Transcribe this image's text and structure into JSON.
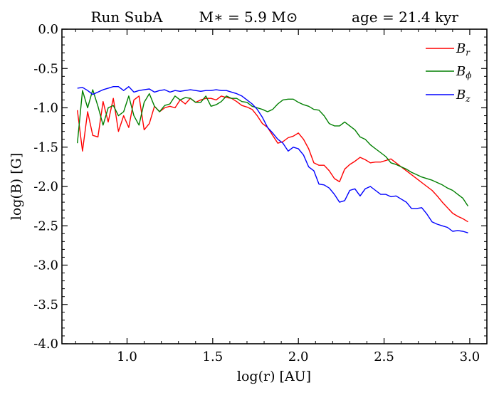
{
  "chart_data": {
    "type": "line",
    "title": {
      "run": "Run SubA",
      "mass": "M∗ = 5.9 M⊙",
      "age": "age = 21.4 kyr"
    },
    "xlabel": "log(r) [AU]",
    "ylabel": "log(B) [G]",
    "xlim": [
      0.62,
      3.1
    ],
    "ylim": [
      -4.0,
      0.0
    ],
    "xticks": [
      1.0,
      1.5,
      2.0,
      2.5,
      3.0
    ],
    "xtick_labels": [
      "1.0",
      "1.5",
      "2.0",
      "2.5",
      "3.0"
    ],
    "yticks": [
      0.0,
      -0.5,
      -1.0,
      -1.5,
      -2.0,
      -2.5,
      -3.0,
      -3.5,
      -4.0
    ],
    "ytick_labels": [
      "0.0",
      "-0.5",
      "-1.0",
      "-1.5",
      "-2.0",
      "-2.5",
      "-3.0",
      "-3.5",
      "-4.0"
    ],
    "legend_position": "top-right",
    "series": [
      {
        "name": "B_r",
        "label_main": "B",
        "label_sub": "r",
        "color": "#ff0000",
        "x": [
          0.71,
          0.74,
          0.77,
          0.8,
          0.83,
          0.86,
          0.89,
          0.92,
          0.95,
          0.98,
          1.01,
          1.04,
          1.07,
          1.1,
          1.13,
          1.16,
          1.19,
          1.22,
          1.25,
          1.28,
          1.31,
          1.34,
          1.37,
          1.4,
          1.43,
          1.46,
          1.49,
          1.52,
          1.55,
          1.58,
          1.61,
          1.64,
          1.67,
          1.7,
          1.73,
          1.76,
          1.79,
          1.82,
          1.85,
          1.88,
          1.91,
          1.94,
          1.97,
          2.0,
          2.03,
          2.06,
          2.09,
          2.12,
          2.15,
          2.18,
          2.21,
          2.24,
          2.27,
          2.3,
          2.33,
          2.36,
          2.39,
          2.42,
          2.45,
          2.48,
          2.51,
          2.54,
          2.57,
          2.6,
          2.63,
          2.66,
          2.69,
          2.72,
          2.75,
          2.78,
          2.81,
          2.84,
          2.87,
          2.9,
          2.93,
          2.96,
          2.99
        ],
        "values": [
          -1.03,
          -1.55,
          -1.05,
          -1.35,
          -1.37,
          -0.92,
          -1.18,
          -0.88,
          -1.3,
          -1.1,
          -1.25,
          -0.9,
          -0.85,
          -1.28,
          -1.2,
          -0.98,
          -1.05,
          -1.0,
          -0.98,
          -1.0,
          -0.9,
          -0.95,
          -0.88,
          -0.93,
          -0.9,
          -0.88,
          -0.88,
          -0.9,
          -0.85,
          -0.87,
          -0.88,
          -0.92,
          -0.97,
          -0.99,
          -1.02,
          -1.1,
          -1.2,
          -1.25,
          -1.35,
          -1.45,
          -1.43,
          -1.38,
          -1.36,
          -1.32,
          -1.4,
          -1.52,
          -1.7,
          -1.73,
          -1.73,
          -1.8,
          -1.9,
          -1.94,
          -1.78,
          -1.72,
          -1.68,
          -1.63,
          -1.66,
          -1.7,
          -1.69,
          -1.69,
          -1.67,
          -1.65,
          -1.7,
          -1.75,
          -1.8,
          -1.85,
          -1.9,
          -1.95,
          -2.0,
          -2.05,
          -2.12,
          -2.2,
          -2.27,
          -2.34,
          -2.38,
          -2.41,
          -2.45
        ]
      },
      {
        "name": "B_phi",
        "label_main": "B",
        "label_sub": "ϕ",
        "color": "#007f00",
        "x": [
          0.71,
          0.74,
          0.77,
          0.8,
          0.83,
          0.86,
          0.89,
          0.92,
          0.95,
          0.98,
          1.01,
          1.04,
          1.07,
          1.1,
          1.13,
          1.16,
          1.19,
          1.22,
          1.25,
          1.28,
          1.31,
          1.34,
          1.37,
          1.4,
          1.43,
          1.46,
          1.49,
          1.52,
          1.55,
          1.58,
          1.61,
          1.64,
          1.67,
          1.7,
          1.73,
          1.76,
          1.79,
          1.82,
          1.85,
          1.88,
          1.91,
          1.94,
          1.97,
          2.0,
          2.03,
          2.06,
          2.09,
          2.12,
          2.15,
          2.18,
          2.21,
          2.24,
          2.27,
          2.3,
          2.33,
          2.36,
          2.39,
          2.42,
          2.45,
          2.48,
          2.51,
          2.54,
          2.57,
          2.6,
          2.63,
          2.66,
          2.69,
          2.72,
          2.75,
          2.78,
          2.81,
          2.84,
          2.87,
          2.9,
          2.93,
          2.96,
          2.99
        ],
        "values": [
          -1.45,
          -0.78,
          -1.0,
          -0.77,
          -0.98,
          -1.22,
          -1.0,
          -0.97,
          -1.1,
          -1.05,
          -0.85,
          -1.1,
          -1.22,
          -0.93,
          -0.82,
          -0.98,
          -1.05,
          -0.97,
          -0.95,
          -0.85,
          -0.9,
          -0.87,
          -0.88,
          -0.93,
          -0.93,
          -0.85,
          -0.98,
          -0.96,
          -0.92,
          -0.85,
          -0.88,
          -0.88,
          -0.92,
          -0.93,
          -0.98,
          -1.0,
          -1.02,
          -1.05,
          -1.02,
          -0.95,
          -0.9,
          -0.89,
          -0.89,
          -0.93,
          -0.96,
          -0.98,
          -1.02,
          -1.03,
          -1.1,
          -1.2,
          -1.23,
          -1.23,
          -1.18,
          -1.23,
          -1.28,
          -1.37,
          -1.4,
          -1.47,
          -1.52,
          -1.57,
          -1.62,
          -1.7,
          -1.72,
          -1.75,
          -1.78,
          -1.82,
          -1.85,
          -1.88,
          -1.9,
          -1.92,
          -1.95,
          -1.98,
          -2.02,
          -2.05,
          -2.1,
          -2.15,
          -2.25
        ]
      },
      {
        "name": "B_z",
        "label_main": "B",
        "label_sub": "z",
        "color": "#0000ff",
        "x": [
          0.71,
          0.74,
          0.77,
          0.8,
          0.83,
          0.86,
          0.89,
          0.92,
          0.95,
          0.98,
          1.01,
          1.04,
          1.07,
          1.1,
          1.13,
          1.16,
          1.19,
          1.22,
          1.25,
          1.28,
          1.31,
          1.34,
          1.37,
          1.4,
          1.43,
          1.46,
          1.49,
          1.52,
          1.55,
          1.58,
          1.61,
          1.64,
          1.67,
          1.7,
          1.73,
          1.76,
          1.79,
          1.82,
          1.85,
          1.88,
          1.91,
          1.94,
          1.97,
          2.0,
          2.03,
          2.06,
          2.09,
          2.12,
          2.15,
          2.18,
          2.21,
          2.24,
          2.27,
          2.3,
          2.33,
          2.36,
          2.39,
          2.42,
          2.45,
          2.48,
          2.51,
          2.54,
          2.57,
          2.6,
          2.63,
          2.66,
          2.69,
          2.72,
          2.75,
          2.78,
          2.81,
          2.84,
          2.87,
          2.9,
          2.93,
          2.96,
          2.99
        ],
        "values": [
          -0.75,
          -0.74,
          -0.78,
          -0.83,
          -0.8,
          -0.77,
          -0.75,
          -0.73,
          -0.73,
          -0.78,
          -0.73,
          -0.8,
          -0.78,
          -0.77,
          -0.76,
          -0.8,
          -0.78,
          -0.77,
          -0.8,
          -0.78,
          -0.79,
          -0.78,
          -0.77,
          -0.78,
          -0.79,
          -0.78,
          -0.78,
          -0.77,
          -0.78,
          -0.78,
          -0.8,
          -0.82,
          -0.85,
          -0.9,
          -0.95,
          -1.02,
          -1.12,
          -1.25,
          -1.32,
          -1.4,
          -1.45,
          -1.55,
          -1.5,
          -1.52,
          -1.6,
          -1.75,
          -1.8,
          -1.97,
          -1.98,
          -2.02,
          -2.1,
          -2.2,
          -2.18,
          -2.05,
          -2.03,
          -2.12,
          -2.03,
          -2.0,
          -2.05,
          -2.1,
          -2.1,
          -2.13,
          -2.12,
          -2.16,
          -2.2,
          -2.28,
          -2.28,
          -2.27,
          -2.35,
          -2.45,
          -2.48,
          -2.5,
          -2.52,
          -2.57,
          -2.56,
          -2.57,
          -2.59
        ]
      }
    ]
  }
}
